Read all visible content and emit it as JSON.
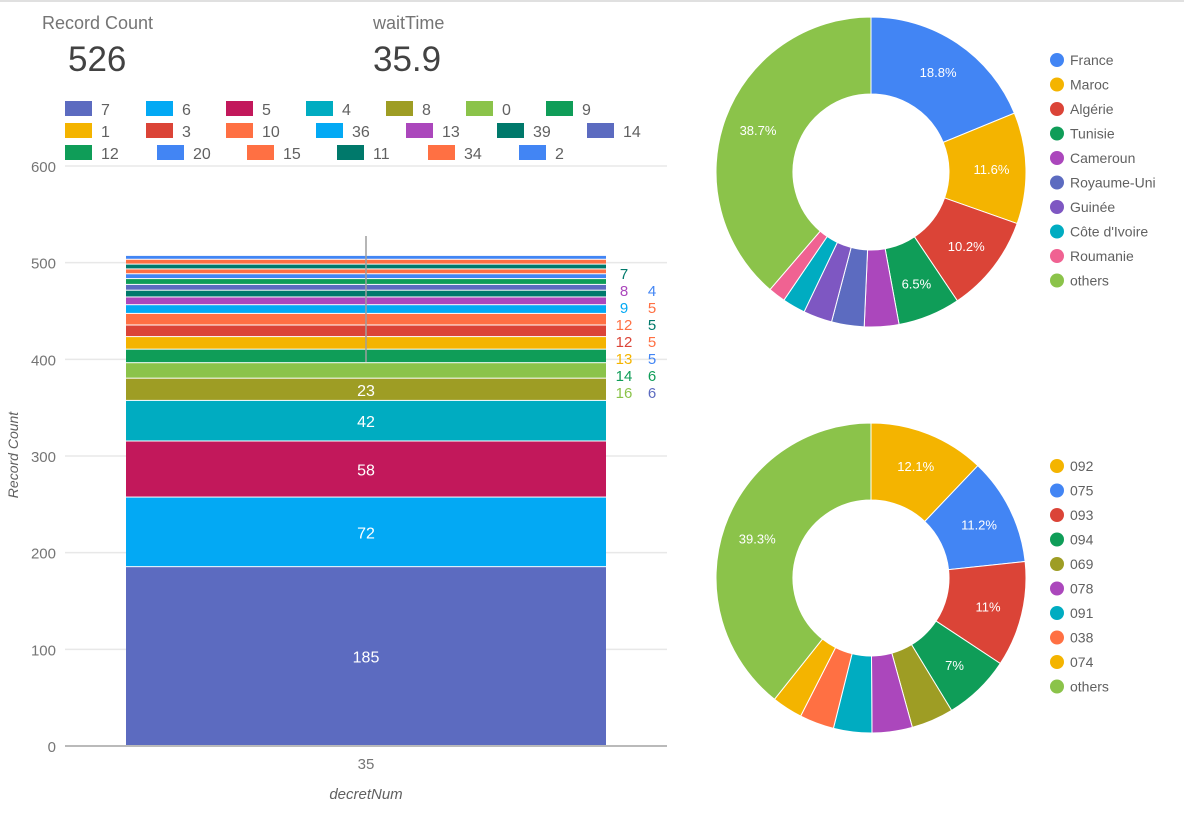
{
  "scorecards": [
    {
      "label": "Record Count",
      "value": "526"
    },
    {
      "label": "waitTime",
      "value": "35.9"
    }
  ],
  "chart_data": [
    {
      "type": "bar",
      "stacked": true,
      "xlabel": "decretNum",
      "ylabel": "Record Count",
      "categories": [
        "35"
      ],
      "ylim": [
        0,
        600
      ],
      "yticks": [
        0,
        100,
        200,
        300,
        400,
        500,
        600
      ],
      "grid": true,
      "legend": "top",
      "series": [
        {
          "name": "7",
          "color": "#5c6bc0",
          "values": [
            185
          ]
        },
        {
          "name": "6",
          "color": "#03a9f4",
          "values": [
            72
          ]
        },
        {
          "name": "5",
          "color": "#c2185b",
          "values": [
            58
          ]
        },
        {
          "name": "4",
          "color": "#00acc1",
          "values": [
            42
          ]
        },
        {
          "name": "8",
          "color": "#9e9d24",
          "values": [
            23
          ]
        },
        {
          "name": "0",
          "color": "#8bc34a",
          "values": [
            16
          ]
        },
        {
          "name": "9",
          "color": "#0f9d58",
          "values": [
            14
          ]
        },
        {
          "name": "1",
          "color": "#f4b400",
          "values": [
            13
          ]
        },
        {
          "name": "3",
          "color": "#db4437",
          "values": [
            12
          ]
        },
        {
          "name": "10",
          "color": "#ff7043",
          "values": [
            12
          ]
        },
        {
          "name": "36",
          "color": "#03a9f4",
          "values": [
            9
          ]
        },
        {
          "name": "13",
          "color": "#ab47bc",
          "values": [
            8
          ]
        },
        {
          "name": "39",
          "color": "#00796b",
          "values": [
            7
          ]
        },
        {
          "name": "14",
          "color": "#5c6bc0",
          "values": [
            6
          ]
        },
        {
          "name": "12",
          "color": "#0f9d58",
          "values": [
            6
          ]
        },
        {
          "name": "20",
          "color": "#4285f4",
          "values": [
            5
          ]
        },
        {
          "name": "15",
          "color": "#ff7043",
          "values": [
            5
          ]
        },
        {
          "name": "11",
          "color": "#00796b",
          "values": [
            5
          ]
        },
        {
          "name": "34",
          "color": "#ff7043",
          "values": [
            5
          ]
        },
        {
          "name": "2",
          "color": "#4285f4",
          "values": [
            4
          ]
        }
      ]
    },
    {
      "type": "pie",
      "donut": true,
      "legend": "right",
      "slices": [
        {
          "name": "France",
          "value": 18.8,
          "label": "18.8%",
          "color": "#4285f4"
        },
        {
          "name": "Maroc",
          "value": 11.6,
          "label": "11.6%",
          "color": "#f4b400"
        },
        {
          "name": "Algérie",
          "value": 10.2,
          "label": "10.2%",
          "color": "#db4437"
        },
        {
          "name": "Tunisie",
          "value": 6.5,
          "label": "6.5%",
          "color": "#0f9d58"
        },
        {
          "name": "Cameroun",
          "value": 3.6,
          "label": "",
          "color": "#ab47bc"
        },
        {
          "name": "Royaume-Uni",
          "value": 3.4,
          "label": "",
          "color": "#5c6bc0"
        },
        {
          "name": "Guinée",
          "value": 3.0,
          "label": "",
          "color": "#7e57c2"
        },
        {
          "name": "Côte d'Ivoire",
          "value": 2.4,
          "label": "",
          "color": "#00acc1"
        },
        {
          "name": "Roumanie",
          "value": 1.8,
          "label": "",
          "color": "#f06292"
        },
        {
          "name": "others",
          "value": 38.7,
          "label": "38.7%",
          "color": "#8bc34a"
        }
      ]
    },
    {
      "type": "pie",
      "donut": true,
      "legend": "right",
      "slices": [
        {
          "name": "092",
          "value": 12.1,
          "label": "12.1%",
          "color": "#f4b400"
        },
        {
          "name": "075",
          "value": 11.2,
          "label": "11.2%",
          "color": "#4285f4"
        },
        {
          "name": "093",
          "value": 11.0,
          "label": "11%",
          "color": "#db4437"
        },
        {
          "name": "094",
          "value": 7.0,
          "label": "7%",
          "color": "#0f9d58"
        },
        {
          "name": "069",
          "value": 4.4,
          "label": "",
          "color": "#9e9d24"
        },
        {
          "name": "078",
          "value": 4.2,
          "label": "",
          "color": "#ab47bc"
        },
        {
          "name": "091",
          "value": 4.0,
          "label": "",
          "color": "#00acc1"
        },
        {
          "name": "038",
          "value": 3.6,
          "label": "",
          "color": "#ff7043"
        },
        {
          "name": "074",
          "value": 3.2,
          "label": "",
          "color": "#f4b400"
        },
        {
          "name": "others",
          "value": 39.3,
          "label": "39.3%",
          "color": "#8bc34a"
        }
      ]
    }
  ]
}
